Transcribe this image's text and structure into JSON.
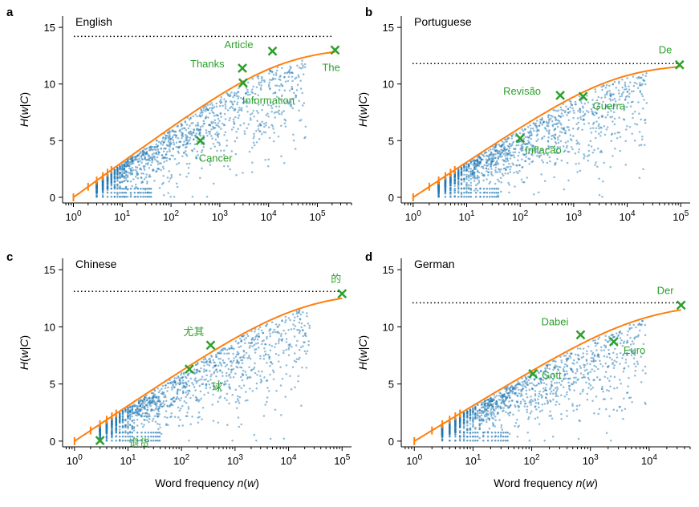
{
  "figure": {
    "ylabel": "H(w|C)",
    "xlabel": "Word frequency n(w)"
  },
  "colors": {
    "scatter": "#1f77b4",
    "curve": "#ff7f0e",
    "highlight": "#2ca02c",
    "entropy_max_line": "#000000"
  },
  "chart_data": [
    {
      "type": "scatter",
      "panel": "a",
      "title": "English",
      "xscale": "log",
      "x_ticks": [
        "10^0",
        "10^1",
        "10^2",
        "10^3",
        "10^4",
        "10^5"
      ],
      "y_ticks": [
        0,
        5,
        10,
        15
      ],
      "xlim": [
        0.6,
        500000
      ],
      "ylim": [
        -0.5,
        16
      ],
      "max_entropy": 14.2,
      "n_max": 230000,
      "curve_saturation": 13.25,
      "highlighted_words": [
        {
          "label": "Article",
          "x": 12000,
          "y": 12.9
        },
        {
          "label": "Thanks",
          "x": 2900,
          "y": 11.4
        },
        {
          "label": "The",
          "x": 230000,
          "y": 13.0
        },
        {
          "label": "Information",
          "x": 3000,
          "y": 10.1
        },
        {
          "label": "Cancer",
          "x": 400,
          "y": 5.0
        }
      ]
    },
    {
      "type": "scatter",
      "panel": "b",
      "title": "Portuguese",
      "xscale": "log",
      "x_ticks": [
        "10^0",
        "10^1",
        "10^2",
        "10^3",
        "10^4",
        "10^5"
      ],
      "y_ticks": [
        0,
        5,
        10,
        15
      ],
      "xlim": [
        0.6,
        150000
      ],
      "ylim": [
        -0.5,
        16
      ],
      "max_entropy": 11.8,
      "n_max": 95000,
      "curve_saturation": 11.8,
      "highlighted_words": [
        {
          "label": "De",
          "x": 95000,
          "y": 11.7
        },
        {
          "label": "Revisão",
          "x": 560,
          "y": 9.0
        },
        {
          "label": "Guerra",
          "x": 1500,
          "y": 8.9
        },
        {
          "label": "Inflação",
          "x": 100,
          "y": 5.2
        }
      ]
    },
    {
      "type": "scatter",
      "panel": "c",
      "title": "Chinese",
      "xscale": "log",
      "x_ticks": [
        "10^0",
        "10^1",
        "10^2",
        "10^3",
        "10^4",
        "10^5"
      ],
      "y_ticks": [
        0,
        5,
        10,
        15
      ],
      "xlim": [
        0.6,
        150000
      ],
      "ylim": [
        -0.5,
        16
      ],
      "max_entropy": 13.1,
      "n_max": 100000,
      "curve_saturation": 13.1,
      "highlighted_words": [
        {
          "label": "的",
          "x": 100000,
          "y": 12.9
        },
        {
          "label": "尤其",
          "x": 350,
          "y": 8.4
        },
        {
          "label": "球",
          "x": 140,
          "y": 6.3
        },
        {
          "label": "退货",
          "x": 3,
          "y": 0.05
        }
      ]
    },
    {
      "type": "scatter",
      "panel": "d",
      "title": "German",
      "xscale": "log",
      "x_ticks": [
        "10^0",
        "10^1",
        "10^2",
        "10^3",
        "10^4"
      ],
      "y_ticks": [
        0,
        5,
        10,
        15
      ],
      "xlim": [
        0.6,
        50000
      ],
      "ylim": [
        -0.5,
        16
      ],
      "max_entropy": 12.1,
      "n_max": 35000,
      "curve_saturation": 12.1,
      "highlighted_words": [
        {
          "label": "Der",
          "x": 35000,
          "y": 11.9
        },
        {
          "label": "Dabei",
          "x": 680,
          "y": 9.3
        },
        {
          "label": "Euro",
          "x": 2500,
          "y": 8.7
        },
        {
          "label": "Gott",
          "x": 105,
          "y": 5.9
        }
      ]
    }
  ]
}
